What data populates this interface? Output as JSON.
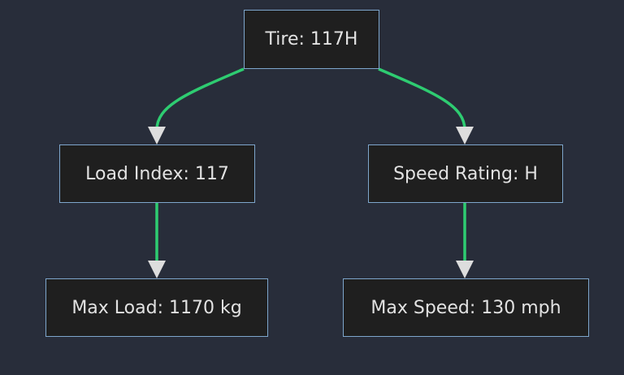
{
  "colors": {
    "background": "#282d3a",
    "node_fill": "#1f1f1f",
    "node_border": "#7ea6cc",
    "edge": "#2ecc71",
    "arrowhead": "#dddddd",
    "text": "#e2e2e2"
  },
  "nodes": {
    "tire": "Tire: 117H",
    "load_index": "Load Index: 117",
    "speed_rating": "Speed Rating: H",
    "max_load": "Max Load: 1170 kg",
    "max_speed": "Max Speed: 130 mph"
  },
  "edges": [
    {
      "from": "tire",
      "to": "load_index"
    },
    {
      "from": "tire",
      "to": "speed_rating"
    },
    {
      "from": "load_index",
      "to": "max_load"
    },
    {
      "from": "speed_rating",
      "to": "max_speed"
    }
  ]
}
